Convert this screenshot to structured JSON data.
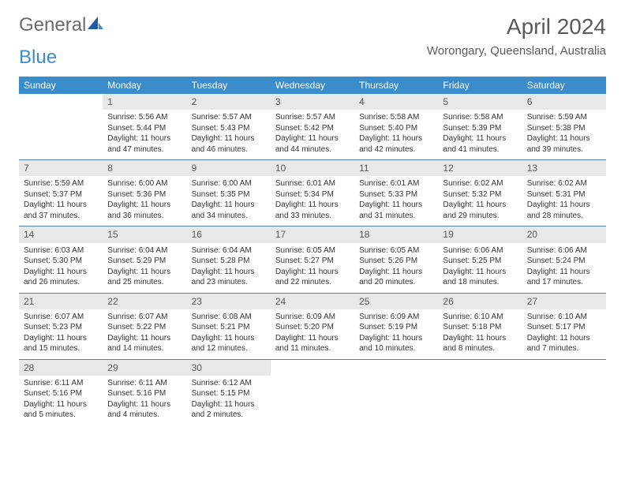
{
  "logo": {
    "general": "General",
    "blue": "Blue"
  },
  "title": "April 2024",
  "location": "Worongary, Queensland, Australia",
  "colors": {
    "header_bg": "#3b8ccb",
    "header_text": "#ffffff",
    "daynum_bg": "#e8e8e8",
    "daynum_text": "#5a5a5a",
    "rule": "#5584a8",
    "body_text": "#333333",
    "title_text": "#5a5a5a",
    "logo_grey": "#6b6b6b",
    "logo_blue": "#3b8ccb",
    "background": "#ffffff"
  },
  "day_headers": [
    "Sunday",
    "Monday",
    "Tuesday",
    "Wednesday",
    "Thursday",
    "Friday",
    "Saturday"
  ],
  "weeks": [
    [
      null,
      {
        "n": "1",
        "sunrise": "5:56 AM",
        "sunset": "5:44 PM",
        "daylight": "11 hours and 47 minutes."
      },
      {
        "n": "2",
        "sunrise": "5:57 AM",
        "sunset": "5:43 PM",
        "daylight": "11 hours and 46 minutes."
      },
      {
        "n": "3",
        "sunrise": "5:57 AM",
        "sunset": "5:42 PM",
        "daylight": "11 hours and 44 minutes."
      },
      {
        "n": "4",
        "sunrise": "5:58 AM",
        "sunset": "5:40 PM",
        "daylight": "11 hours and 42 minutes."
      },
      {
        "n": "5",
        "sunrise": "5:58 AM",
        "sunset": "5:39 PM",
        "daylight": "11 hours and 41 minutes."
      },
      {
        "n": "6",
        "sunrise": "5:59 AM",
        "sunset": "5:38 PM",
        "daylight": "11 hours and 39 minutes."
      }
    ],
    [
      {
        "n": "7",
        "sunrise": "5:59 AM",
        "sunset": "5:37 PM",
        "daylight": "11 hours and 37 minutes."
      },
      {
        "n": "8",
        "sunrise": "6:00 AM",
        "sunset": "5:36 PM",
        "daylight": "11 hours and 36 minutes."
      },
      {
        "n": "9",
        "sunrise": "6:00 AM",
        "sunset": "5:35 PM",
        "daylight": "11 hours and 34 minutes."
      },
      {
        "n": "10",
        "sunrise": "6:01 AM",
        "sunset": "5:34 PM",
        "daylight": "11 hours and 33 minutes."
      },
      {
        "n": "11",
        "sunrise": "6:01 AM",
        "sunset": "5:33 PM",
        "daylight": "11 hours and 31 minutes."
      },
      {
        "n": "12",
        "sunrise": "6:02 AM",
        "sunset": "5:32 PM",
        "daylight": "11 hours and 29 minutes."
      },
      {
        "n": "13",
        "sunrise": "6:02 AM",
        "sunset": "5:31 PM",
        "daylight": "11 hours and 28 minutes."
      }
    ],
    [
      {
        "n": "14",
        "sunrise": "6:03 AM",
        "sunset": "5:30 PM",
        "daylight": "11 hours and 26 minutes."
      },
      {
        "n": "15",
        "sunrise": "6:04 AM",
        "sunset": "5:29 PM",
        "daylight": "11 hours and 25 minutes."
      },
      {
        "n": "16",
        "sunrise": "6:04 AM",
        "sunset": "5:28 PM",
        "daylight": "11 hours and 23 minutes."
      },
      {
        "n": "17",
        "sunrise": "6:05 AM",
        "sunset": "5:27 PM",
        "daylight": "11 hours and 22 minutes."
      },
      {
        "n": "18",
        "sunrise": "6:05 AM",
        "sunset": "5:26 PM",
        "daylight": "11 hours and 20 minutes."
      },
      {
        "n": "19",
        "sunrise": "6:06 AM",
        "sunset": "5:25 PM",
        "daylight": "11 hours and 18 minutes."
      },
      {
        "n": "20",
        "sunrise": "6:06 AM",
        "sunset": "5:24 PM",
        "daylight": "11 hours and 17 minutes."
      }
    ],
    [
      {
        "n": "21",
        "sunrise": "6:07 AM",
        "sunset": "5:23 PM",
        "daylight": "11 hours and 15 minutes."
      },
      {
        "n": "22",
        "sunrise": "6:07 AM",
        "sunset": "5:22 PM",
        "daylight": "11 hours and 14 minutes."
      },
      {
        "n": "23",
        "sunrise": "6:08 AM",
        "sunset": "5:21 PM",
        "daylight": "11 hours and 12 minutes."
      },
      {
        "n": "24",
        "sunrise": "6:09 AM",
        "sunset": "5:20 PM",
        "daylight": "11 hours and 11 minutes."
      },
      {
        "n": "25",
        "sunrise": "6:09 AM",
        "sunset": "5:19 PM",
        "daylight": "11 hours and 10 minutes."
      },
      {
        "n": "26",
        "sunrise": "6:10 AM",
        "sunset": "5:18 PM",
        "daylight": "11 hours and 8 minutes."
      },
      {
        "n": "27",
        "sunrise": "6:10 AM",
        "sunset": "5:17 PM",
        "daylight": "11 hours and 7 minutes."
      }
    ],
    [
      {
        "n": "28",
        "sunrise": "6:11 AM",
        "sunset": "5:16 PM",
        "daylight": "11 hours and 5 minutes."
      },
      {
        "n": "29",
        "sunrise": "6:11 AM",
        "sunset": "5:16 PM",
        "daylight": "11 hours and 4 minutes."
      },
      {
        "n": "30",
        "sunrise": "6:12 AM",
        "sunset": "5:15 PM",
        "daylight": "11 hours and 2 minutes."
      },
      null,
      null,
      null,
      null
    ]
  ],
  "labels": {
    "sunrise": "Sunrise: ",
    "sunset": "Sunset: ",
    "daylight": "Daylight: "
  }
}
